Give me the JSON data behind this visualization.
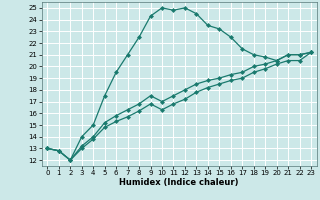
{
  "title": "",
  "xlabel": "Humidex (Indice chaleur)",
  "ylabel": "",
  "bg_color": "#cce8e8",
  "grid_color": "#ffffff",
  "line_color": "#1a7a6e",
  "marker": "D",
  "markersize": 2.0,
  "linewidth": 0.9,
  "xlim": [
    -0.5,
    23.5
  ],
  "ylim": [
    11.5,
    25.5
  ],
  "xticks": [
    0,
    1,
    2,
    3,
    4,
    5,
    6,
    7,
    8,
    9,
    10,
    11,
    12,
    13,
    14,
    15,
    16,
    17,
    18,
    19,
    20,
    21,
    22,
    23
  ],
  "yticks": [
    12,
    13,
    14,
    15,
    16,
    17,
    18,
    19,
    20,
    21,
    22,
    23,
    24,
    25
  ],
  "series": [
    {
      "x": [
        0,
        1,
        2,
        3,
        4,
        5,
        6,
        7,
        8,
        9,
        10,
        11,
        12,
        13,
        14,
        15,
        16,
        17,
        18,
        19,
        20,
        21,
        22,
        23
      ],
      "y": [
        13.0,
        12.8,
        12.0,
        14.0,
        15.0,
        17.5,
        19.5,
        21.0,
        22.5,
        24.3,
        25.0,
        24.8,
        25.0,
        24.5,
        23.5,
        23.2,
        22.5,
        21.5,
        21.0,
        20.8,
        20.5,
        21.0,
        21.0,
        21.2
      ]
    },
    {
      "x": [
        0,
        1,
        2,
        3,
        4,
        5,
        6,
        7,
        8,
        9,
        10,
        11,
        12,
        13,
        14,
        15,
        16,
        17,
        18,
        19,
        20,
        21,
        22,
        23
      ],
      "y": [
        13.0,
        12.8,
        12.0,
        13.2,
        14.0,
        15.2,
        15.8,
        16.3,
        16.8,
        17.5,
        17.0,
        17.5,
        18.0,
        18.5,
        18.8,
        19.0,
        19.3,
        19.5,
        20.0,
        20.2,
        20.5,
        21.0,
        21.0,
        21.2
      ]
    },
    {
      "x": [
        0,
        1,
        2,
        3,
        4,
        5,
        6,
        7,
        8,
        9,
        10,
        11,
        12,
        13,
        14,
        15,
        16,
        17,
        18,
        19,
        20,
        21,
        22,
        23
      ],
      "y": [
        13.0,
        12.8,
        12.0,
        13.0,
        13.8,
        14.8,
        15.3,
        15.7,
        16.2,
        16.8,
        16.3,
        16.8,
        17.2,
        17.8,
        18.2,
        18.5,
        18.8,
        19.0,
        19.5,
        19.8,
        20.2,
        20.5,
        20.5,
        21.2
      ]
    }
  ]
}
